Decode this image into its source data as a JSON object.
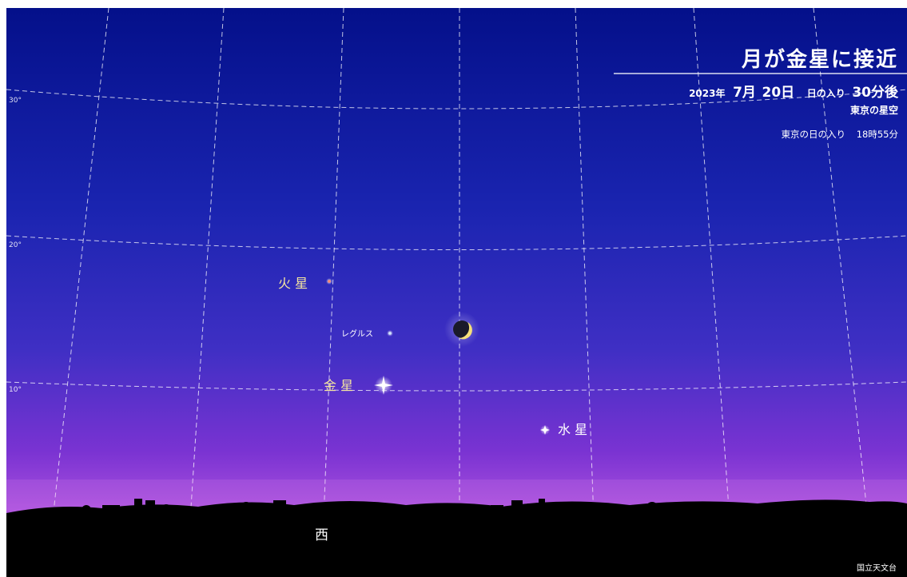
{
  "header": {
    "title": "月が金星に接近",
    "date_year": "2023年",
    "date_month": "7月",
    "date_day": "20日",
    "event_prefix": "日の入り",
    "event_minutes": "30分後",
    "location_sky": "東京の星空",
    "sunset_label": "東京の日の入り",
    "sunset_time": "18時55分"
  },
  "grid": {
    "altitude_labels": [
      "30°",
      "20°",
      "10°"
    ]
  },
  "objects": {
    "mars": "火 星",
    "regulus": "レグルス",
    "venus": "金 星",
    "mercury": "水 星"
  },
  "horizon": {
    "direction": "西"
  },
  "credit": "国立天文台",
  "colors": {
    "sky_top": "#05118a",
    "sky_mid": "#2d2db4",
    "sky_lower": "#6a2ed0",
    "sky_horizon": "#c45ee6",
    "label_yellow": "#f5e6a0",
    "label_white": "#ffffff",
    "mars_color": "#ff8a70",
    "grid_line": "#ffffff"
  }
}
